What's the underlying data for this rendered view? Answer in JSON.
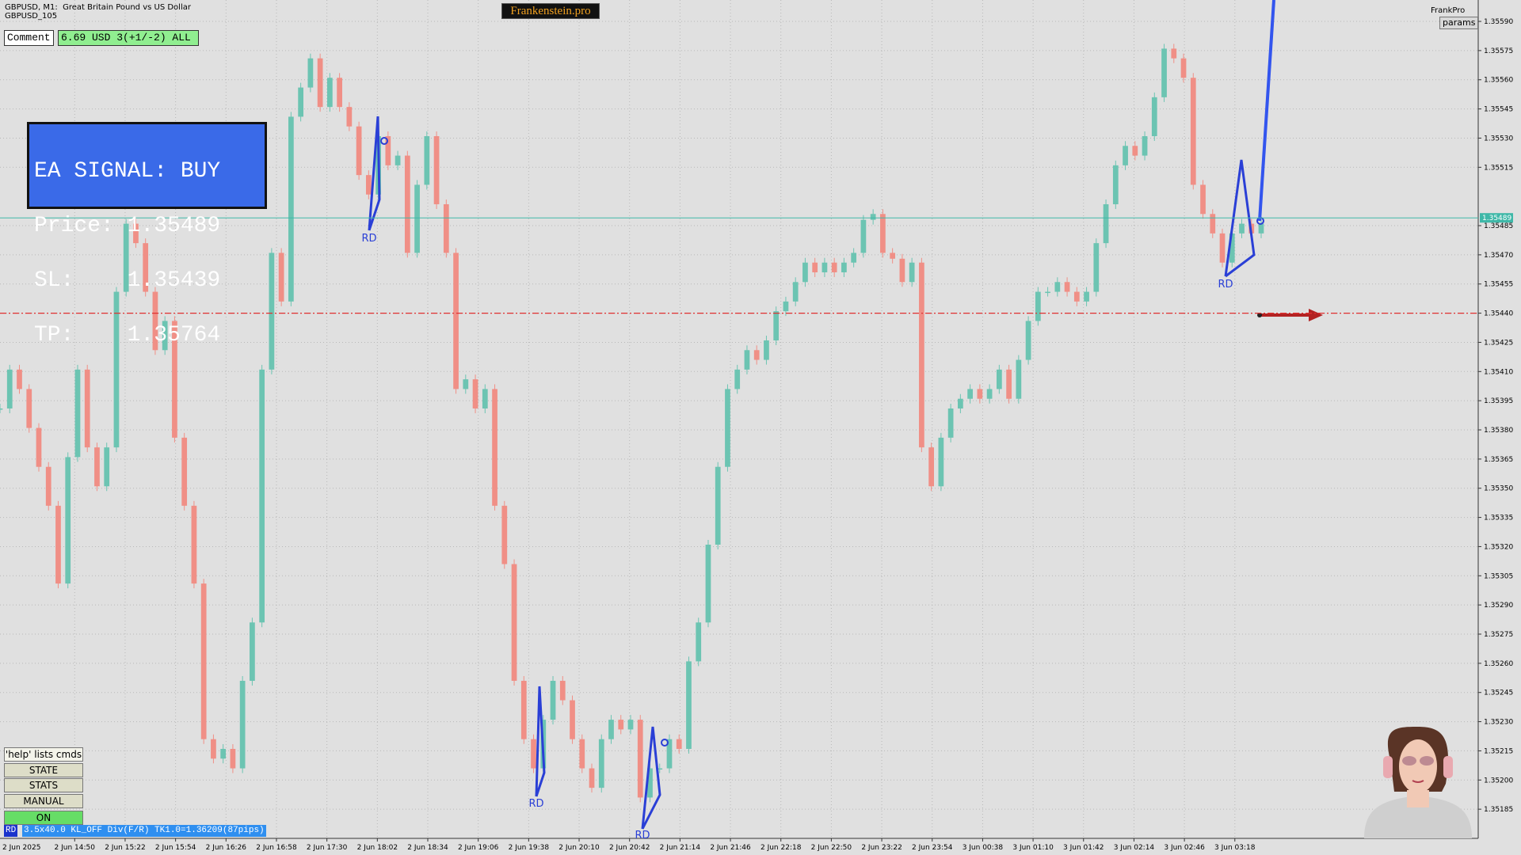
{
  "header": {
    "symbol": "GBPUSD, M1:",
    "description": "Great Britain Pound vs US Dollar",
    "account": "GBPUSD_105",
    "brand": "Frankenstein.pro",
    "corner_label": "FrankPro",
    "params_button": "params"
  },
  "comment": {
    "label": "Comment",
    "value": "6.69 USD 3(+1/-2) ALL"
  },
  "signal": {
    "lines": [
      "EA SIGNAL: BUY",
      "Price: 1.35489",
      "SL:    1.35439",
      "TP:    1.35764"
    ]
  },
  "buttons": [
    "'help' lists cmds",
    "STATE",
    "STATS",
    "MANUAL",
    "ON"
  ],
  "status": {
    "tag": "RD",
    "text": "3.5x40.0 KL_OFF Div(F/R) TK1.0=1.36209(87pips)"
  },
  "chart_data": {
    "type": "candlestick",
    "closes": [
      1.35391,
      1.35411,
      1.35401,
      1.35381,
      1.35361,
      1.35341,
      1.35301,
      1.35366,
      1.35411,
      1.35371,
      1.35351,
      1.35371,
      1.35451,
      1.35486,
      1.35476,
      1.35451,
      1.35421,
      1.35436,
      1.35376,
      1.35341,
      1.35301,
      1.35221,
      1.35211,
      1.35216,
      1.35206,
      1.35251,
      1.35281,
      1.35411,
      1.35471,
      1.35446,
      1.35541,
      1.35556,
      1.35571,
      1.35546,
      1.35561,
      1.35546,
      1.35536,
      1.35511,
      1.35501,
      1.35531,
      1.35516,
      1.35521,
      1.35471,
      1.35506,
      1.35531,
      1.35496,
      1.35471,
      1.35401,
      1.35406,
      1.35391,
      1.35401,
      1.35341,
      1.35311,
      1.35251,
      1.35221,
      1.35206,
      1.35231,
      1.35251,
      1.35241,
      1.35221,
      1.35206,
      1.35196,
      1.35221,
      1.35231,
      1.35226,
      1.35231,
      1.35191,
      1.35206,
      1.35206,
      1.35221,
      1.35216,
      1.35261,
      1.35281,
      1.35321,
      1.35361,
      1.35401,
      1.35411,
      1.35421,
      1.35416,
      1.35426,
      1.35441,
      1.35446,
      1.35456,
      1.35466,
      1.35461,
      1.35466,
      1.35461,
      1.35466,
      1.35471,
      1.35488,
      1.35491,
      1.35471,
      1.35468,
      1.35456,
      1.35466,
      1.35371,
      1.35351,
      1.35376,
      1.35391,
      1.35396,
      1.35401,
      1.35396,
      1.35401,
      1.35411,
      1.35396,
      1.35416,
      1.35436,
      1.35451,
      1.35451,
      1.35456,
      1.35451,
      1.35446,
      1.35451,
      1.35476,
      1.35496,
      1.35516,
      1.35526,
      1.35521,
      1.35531,
      1.35551,
      1.35576,
      1.35571,
      1.35561,
      1.35506,
      1.35491,
      1.35481,
      1.35466,
      1.35481,
      1.35486,
      1.35481,
      1.35486
    ],
    "x_labels": [
      "2 Jun 2025",
      "2 Jun 14:50",
      "2 Jun 15:22",
      "2 Jun 15:54",
      "2 Jun 16:26",
      "2 Jun 16:58",
      "2 Jun 17:30",
      "2 Jun 18:02",
      "2 Jun 18:34",
      "2 Jun 19:06",
      "2 Jun 19:38",
      "2 Jun 20:10",
      "2 Jun 20:42",
      "2 Jun 21:14",
      "2 Jun 21:46",
      "2 Jun 22:18",
      "2 Jun 22:50",
      "2 Jun 23:22",
      "2 Jun 23:54",
      "3 Jun 00:38",
      "3 Jun 01:10",
      "3 Jun 01:42",
      "3 Jun 02:14",
      "3 Jun 02:46",
      "3 Jun 03:18"
    ],
    "ylim": [
      1.3517,
      1.35601
    ],
    "yticks": [
      1.35185,
      {
        "value": 1.352,
        "label": "1.35200"
      },
      1.35215,
      {
        "value": 1.3523,
        "label": "1.35230"
      },
      1.35245,
      {
        "value": 1.3526,
        "label": "1.35260"
      },
      1.35275,
      {
        "value": 1.3529,
        "label": "1.35290"
      },
      1.35305,
      {
        "value": 1.3532,
        "label": "1.35320"
      },
      1.35335,
      {
        "value": 1.3535,
        "label": "1.35350"
      },
      1.35365,
      {
        "value": 1.3538,
        "label": "1.35380"
      },
      1.35395,
      {
        "value": 1.3541,
        "label": "1.35410"
      },
      1.35425,
      {
        "value": 1.3544,
        "label": "1.35440"
      },
      1.35455,
      {
        "value": 1.3547,
        "label": "1.35470"
      },
      1.35485,
      1.35515,
      {
        "value": 1.3553,
        "label": "1.35530"
      },
      1.35545,
      {
        "value": 1.3556,
        "label": "1.35560"
      },
      1.35575,
      {
        "value": 1.3559,
        "label": "1.35590"
      }
    ],
    "grid": true,
    "up_color": "#6cc4b2",
    "down_color": "#f08f86",
    "current_price": 1.35489,
    "current_price_color": "#3fb8a8",
    "level_line": 1.3544,
    "level_color": "#e03030",
    "annotations": [
      "RD",
      "RD",
      "RD",
      "RD"
    ]
  }
}
